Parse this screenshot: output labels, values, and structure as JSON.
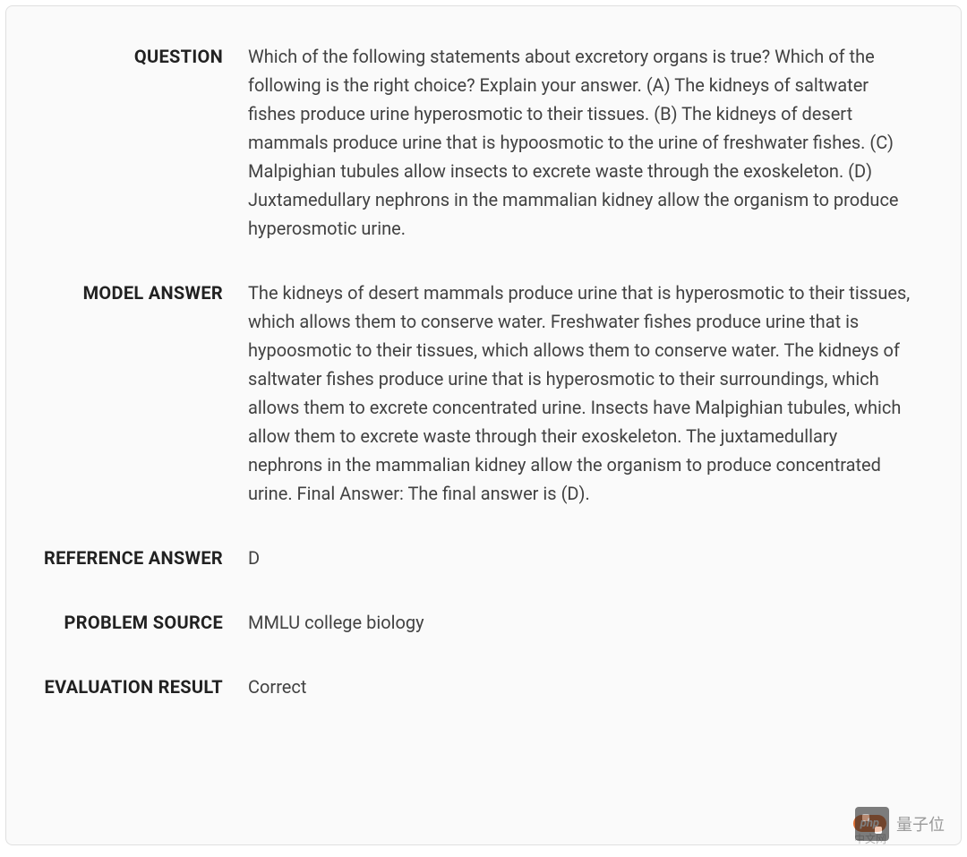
{
  "card": {
    "background_color": "#fafafa",
    "border_color": "#e0e0e0",
    "border_radius": 8,
    "font_family": "Roboto, sans-serif",
    "label_color": "#212121",
    "value_color": "#424242",
    "label_fontsize": 20,
    "value_fontsize": 20,
    "label_fontweight": 700,
    "value_fontweight": 400,
    "line_height": 1.6
  },
  "rows": {
    "question": {
      "label": "QUESTION",
      "value": "Which of the following statements about excretory organs is true? Which of the following is the right choice? Explain your answer. (A) The kidneys of saltwater fishes produce urine hyperosmotic to their tissues. (B) The kidneys of desert mammals produce urine that is hypoosmotic to the urine of freshwater fishes. (C) Malpighian tubules allow insects to excrete waste through the exoskeleton. (D) Juxtamedullary nephrons in the mammalian kidney allow the organism to produce hyperosmotic urine."
    },
    "model_answer": {
      "label": "MODEL ANSWER",
      "value": "The kidneys of desert mammals produce urine that is hyperosmotic to their tissues, which allows them to conserve water. Freshwater fishes produce urine that is hypoosmotic to their tissues, which allows them to conserve water. The kidneys of saltwater fishes produce urine that is hyperosmotic to their surroundings, which allows them to excrete concentrated urine. Insects have Malpighian tubules, which allow them to excrete waste through their exoskeleton. The juxtamedullary nephrons in the mammalian kidney allow the organism to produce concentrated urine. Final Answer: The final answer is (D)."
    },
    "reference_answer": {
      "label": "REFERENCE ANSWER",
      "value": "D"
    },
    "problem_source": {
      "label": "PROBLEM SOURCE",
      "value": "MMLU college biology"
    },
    "evaluation_result": {
      "label": "EVALUATION RESULT",
      "value": "Correct"
    }
  },
  "watermark": {
    "text": "量子位",
    "php_text": "php",
    "sub_text": "中文网"
  }
}
